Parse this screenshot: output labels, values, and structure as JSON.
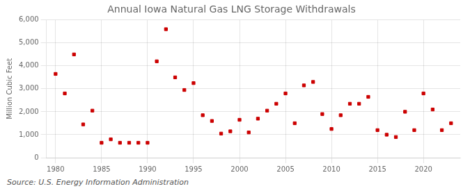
{
  "chart_data": {
    "type": "scatter",
    "title": "Annual Iowa Natural Gas LNG Storage Withdrawals",
    "ylabel": "Million Cubic Feet",
    "source": "Source: U.S. Energy Information Administration",
    "x": [
      1980,
      1981,
      1982,
      1983,
      1984,
      1985,
      1986,
      1987,
      1988,
      1989,
      1990,
      1991,
      1992,
      1993,
      1994,
      1995,
      1996,
      1997,
      1998,
      1999,
      2000,
      2001,
      2002,
      2003,
      2004,
      2005,
      2006,
      2007,
      2008,
      2009,
      2010,
      2011,
      2012,
      2013,
      2014,
      2015,
      2016,
      2017,
      2018,
      2019,
      2020,
      2021,
      2022,
      2023
    ],
    "values": [
      3650,
      2800,
      4500,
      1450,
      2050,
      650,
      800,
      650,
      650,
      650,
      650,
      4200,
      5600,
      3500,
      2950,
      3250,
      1850,
      1600,
      1050,
      1150,
      1650,
      1100,
      1700,
      2050,
      2350,
      2800,
      1500,
      3150,
      3300,
      1900,
      1250,
      1850,
      2350,
      2350,
      2650,
      1200,
      1000,
      900,
      2000,
      1200,
      2800,
      2100,
      1200,
      1500
    ],
    "color": "#cc0000",
    "marker": "square",
    "xlim": [
      1979,
      2024
    ],
    "xticks": [
      1980,
      1985,
      1990,
      1995,
      2000,
      2005,
      2010,
      2015,
      2020
    ],
    "ylim": [
      0,
      6000
    ],
    "yticks": [
      0,
      {
        "value": 1000,
        "label": "1,000"
      },
      {
        "value": 2000,
        "label": "2,000"
      },
      {
        "value": 3000,
        "label": "3,000"
      },
      {
        "value": 4000,
        "label": "4,000"
      },
      {
        "value": 5000,
        "label": "5,000"
      },
      {
        "value": 6000,
        "label": "6,000"
      }
    ],
    "grid": true
  }
}
